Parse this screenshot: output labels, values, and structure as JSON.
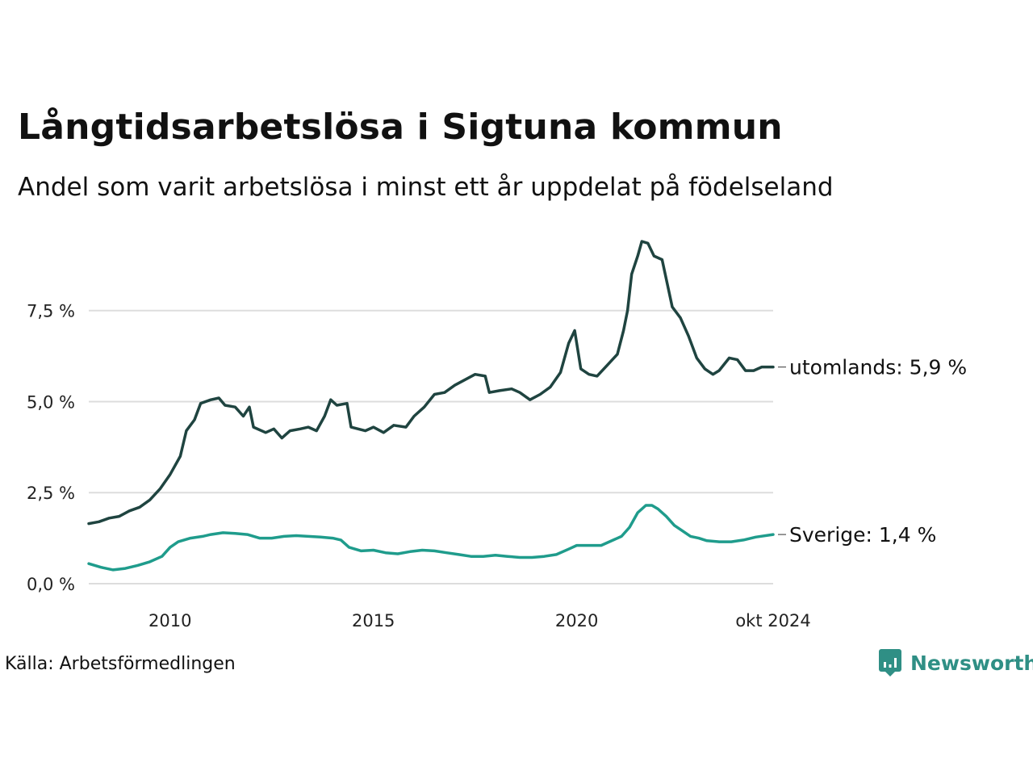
{
  "title": "Långtidsarbetslösa i Sigtuna kommun",
  "subtitle": "Andel som varit arbetslösa i minst ett år uppdelat på födelseland",
  "source": "Källa: Arbetsförmedlingen",
  "brand": "Newsworthy",
  "colors": {
    "utomlands": "#1f4440",
    "sverige": "#1f9c8c",
    "grid": "#dddddd",
    "brand": "#2f8f85"
  },
  "chart_data": {
    "type": "line",
    "x_unit": "year (decimal)",
    "xlim": [
      2008.0,
      2024.83
    ],
    "ylim": [
      0,
      9.6
    ],
    "yticks": [
      0,
      2.5,
      5,
      7.5
    ],
    "ytick_labels": [
      "0,0 %",
      "2,5 %",
      "5,0 %",
      "7,5 %"
    ],
    "xticks": [
      2010,
      2015,
      2020,
      2024.83
    ],
    "xtick_labels": [
      "2010",
      "2015",
      "2020",
      "okt 2024"
    ],
    "series": [
      {
        "name": "utomlands",
        "end_label": "utomlands: 5,9 %",
        "points": [
          [
            2008.0,
            1.65
          ],
          [
            2008.25,
            1.7
          ],
          [
            2008.5,
            1.8
          ],
          [
            2008.75,
            1.85
          ],
          [
            2009.0,
            2.0
          ],
          [
            2009.25,
            2.1
          ],
          [
            2009.5,
            2.3
          ],
          [
            2009.75,
            2.6
          ],
          [
            2010.0,
            3.0
          ],
          [
            2010.25,
            3.5
          ],
          [
            2010.4,
            4.2
          ],
          [
            2010.6,
            4.5
          ],
          [
            2010.75,
            4.95
          ],
          [
            2011.0,
            5.05
          ],
          [
            2011.2,
            5.1
          ],
          [
            2011.35,
            4.9
          ],
          [
            2011.6,
            4.85
          ],
          [
            2011.8,
            4.6
          ],
          [
            2011.95,
            4.85
          ],
          [
            2012.05,
            4.3
          ],
          [
            2012.35,
            4.15
          ],
          [
            2012.55,
            4.25
          ],
          [
            2012.75,
            4.0
          ],
          [
            2012.95,
            4.2
          ],
          [
            2013.2,
            4.25
          ],
          [
            2013.4,
            4.3
          ],
          [
            2013.6,
            4.2
          ],
          [
            2013.8,
            4.6
          ],
          [
            2013.95,
            5.05
          ],
          [
            2014.1,
            4.9
          ],
          [
            2014.35,
            4.95
          ],
          [
            2014.45,
            4.3
          ],
          [
            2014.8,
            4.2
          ],
          [
            2015.0,
            4.3
          ],
          [
            2015.25,
            4.15
          ],
          [
            2015.5,
            4.35
          ],
          [
            2015.8,
            4.3
          ],
          [
            2016.0,
            4.6
          ],
          [
            2016.25,
            4.85
          ],
          [
            2016.5,
            5.2
          ],
          [
            2016.75,
            5.25
          ],
          [
            2017.0,
            5.45
          ],
          [
            2017.25,
            5.6
          ],
          [
            2017.5,
            5.75
          ],
          [
            2017.75,
            5.7
          ],
          [
            2017.85,
            5.25
          ],
          [
            2018.1,
            5.3
          ],
          [
            2018.4,
            5.35
          ],
          [
            2018.6,
            5.25
          ],
          [
            2018.85,
            5.05
          ],
          [
            2019.1,
            5.2
          ],
          [
            2019.35,
            5.4
          ],
          [
            2019.6,
            5.8
          ],
          [
            2019.8,
            6.6
          ],
          [
            2019.95,
            6.95
          ],
          [
            2020.1,
            5.9
          ],
          [
            2020.3,
            5.75
          ],
          [
            2020.5,
            5.7
          ],
          [
            2020.75,
            6.0
          ],
          [
            2021.0,
            6.3
          ],
          [
            2021.15,
            6.95
          ],
          [
            2021.25,
            7.5
          ],
          [
            2021.35,
            8.5
          ],
          [
            2021.5,
            9.0
          ],
          [
            2021.6,
            9.4
          ],
          [
            2021.75,
            9.35
          ],
          [
            2021.9,
            9.0
          ],
          [
            2022.1,
            8.9
          ],
          [
            2022.35,
            7.6
          ],
          [
            2022.55,
            7.3
          ],
          [
            2022.75,
            6.8
          ],
          [
            2022.95,
            6.2
          ],
          [
            2023.15,
            5.9
          ],
          [
            2023.35,
            5.75
          ],
          [
            2023.5,
            5.85
          ],
          [
            2023.75,
            6.2
          ],
          [
            2023.95,
            6.15
          ],
          [
            2024.15,
            5.85
          ],
          [
            2024.35,
            5.85
          ],
          [
            2024.55,
            5.95
          ],
          [
            2024.83,
            5.95
          ]
        ]
      },
      {
        "name": "Sverige",
        "end_label": "Sverige: 1,4 %",
        "points": [
          [
            2008.0,
            0.55
          ],
          [
            2008.3,
            0.45
          ],
          [
            2008.6,
            0.38
          ],
          [
            2008.9,
            0.42
          ],
          [
            2009.2,
            0.5
          ],
          [
            2009.5,
            0.6
          ],
          [
            2009.8,
            0.75
          ],
          [
            2010.0,
            1.0
          ],
          [
            2010.2,
            1.15
          ],
          [
            2010.5,
            1.25
          ],
          [
            2010.8,
            1.3
          ],
          [
            2011.0,
            1.35
          ],
          [
            2011.3,
            1.4
          ],
          [
            2011.6,
            1.38
          ],
          [
            2011.9,
            1.35
          ],
          [
            2012.2,
            1.25
          ],
          [
            2012.5,
            1.25
          ],
          [
            2012.8,
            1.3
          ],
          [
            2013.1,
            1.32
          ],
          [
            2013.4,
            1.3
          ],
          [
            2013.7,
            1.28
          ],
          [
            2014.0,
            1.25
          ],
          [
            2014.2,
            1.2
          ],
          [
            2014.4,
            1.0
          ],
          [
            2014.7,
            0.9
          ],
          [
            2015.0,
            0.92
          ],
          [
            2015.3,
            0.85
          ],
          [
            2015.6,
            0.82
          ],
          [
            2015.9,
            0.88
          ],
          [
            2016.2,
            0.92
          ],
          [
            2016.5,
            0.9
          ],
          [
            2016.8,
            0.85
          ],
          [
            2017.1,
            0.8
          ],
          [
            2017.4,
            0.75
          ],
          [
            2017.7,
            0.75
          ],
          [
            2018.0,
            0.78
          ],
          [
            2018.3,
            0.75
          ],
          [
            2018.6,
            0.72
          ],
          [
            2018.9,
            0.72
          ],
          [
            2019.2,
            0.75
          ],
          [
            2019.5,
            0.8
          ],
          [
            2019.8,
            0.95
          ],
          [
            2020.0,
            1.05
          ],
          [
            2020.3,
            1.05
          ],
          [
            2020.6,
            1.05
          ],
          [
            2020.9,
            1.2
          ],
          [
            2021.1,
            1.3
          ],
          [
            2021.3,
            1.55
          ],
          [
            2021.5,
            1.95
          ],
          [
            2021.7,
            2.15
          ],
          [
            2021.85,
            2.15
          ],
          [
            2022.0,
            2.05
          ],
          [
            2022.2,
            1.85
          ],
          [
            2022.4,
            1.6
          ],
          [
            2022.6,
            1.45
          ],
          [
            2022.8,
            1.3
          ],
          [
            2023.0,
            1.25
          ],
          [
            2023.2,
            1.18
          ],
          [
            2023.5,
            1.15
          ],
          [
            2023.8,
            1.15
          ],
          [
            2024.1,
            1.2
          ],
          [
            2024.4,
            1.28
          ],
          [
            2024.83,
            1.35
          ]
        ]
      }
    ]
  }
}
